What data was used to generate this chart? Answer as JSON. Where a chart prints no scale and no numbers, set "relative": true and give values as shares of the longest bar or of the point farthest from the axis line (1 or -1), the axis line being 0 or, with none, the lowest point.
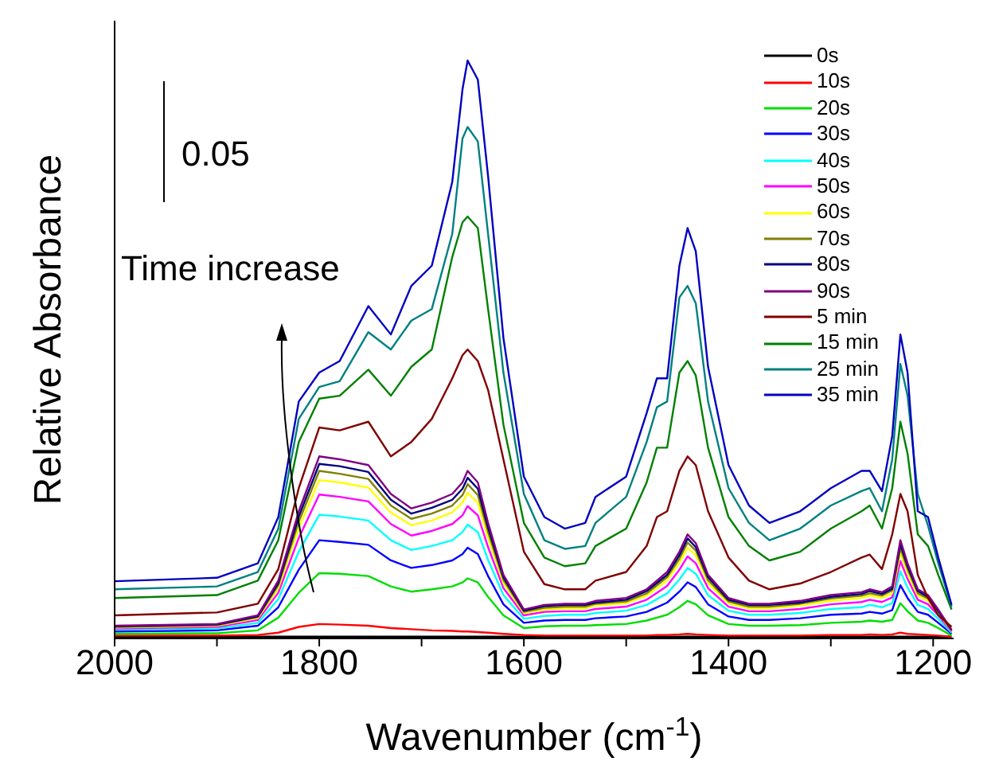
{
  "chart_data": {
    "type": "line",
    "xlabel": "Wavenumber (cm$^{-1}$)",
    "ylabel": "Relative Absorbance",
    "relative": true,
    "xlim": [
      2000,
      1180
    ],
    "xticks": [
      2000,
      {
        "value": 1900,
        "label": null
      },
      1800,
      {
        "value": 1700,
        "label": null
      },
      1600,
      {
        "value": 1500,
        "label": null
      },
      1400,
      {
        "value": 1300,
        "label": null
      },
      1200
    ],
    "legend": "top right",
    "line_style": "solid",
    "annotations": [
      "0.05",
      "Time increase"
    ],
    "x": [
      2000,
      1900,
      1860,
      1840,
      1820,
      1800,
      1780,
      1752,
      1730,
      1710,
      1690,
      1670,
      1660,
      1655,
      1645,
      1635,
      1620,
      1600,
      1580,
      1560,
      1540,
      1530,
      1500,
      1480,
      1470,
      1460,
      1448,
      1440,
      1432,
      1420,
      1400,
      1380,
      1360,
      1330,
      1300,
      1270,
      1262,
      1250,
      1240,
      1232,
      1225,
      1215,
      1205,
      1195,
      1182
    ],
    "series": [
      {
        "name": "0s",
        "color": "#000000",
        "values": [
          0.003,
          0.003,
          0.003,
          0.003,
          0.003,
          0.003,
          0.003,
          0.003,
          0.003,
          0.003,
          0.003,
          0.003,
          0.003,
          0.003,
          0.003,
          0.003,
          0.003,
          0.003,
          0.003,
          0.003,
          0.003,
          0.003,
          0.003,
          0.003,
          0.003,
          0.003,
          0.003,
          0.003,
          0.003,
          0.003,
          0.003,
          0.003,
          0.003,
          0.003,
          0.003,
          0.003,
          0.003,
          0.003,
          0.003,
          0.003,
          0.003,
          0.003,
          0.003,
          0.003,
          0.003
        ]
      },
      {
        "name": "10s",
        "color": "#ff0000",
        "values": [
          0.005,
          0.005,
          0.006,
          0.01,
          0.02,
          0.025,
          0.024,
          0.022,
          0.018,
          0.016,
          0.014,
          0.013,
          0.012,
          0.012,
          0.011,
          0.01,
          0.008,
          0.006,
          0.005,
          0.005,
          0.005,
          0.005,
          0.005,
          0.005,
          0.006,
          0.006,
          0.007,
          0.008,
          0.007,
          0.006,
          0.005,
          0.005,
          0.005,
          0.005,
          0.006,
          0.006,
          0.007,
          0.006,
          0.007,
          0.01,
          0.008,
          0.007,
          0.006,
          0.005,
          0.003
        ]
      },
      {
        "name": "20s",
        "color": "#00dd00",
        "values": [
          0.008,
          0.009,
          0.014,
          0.036,
          0.079,
          0.113,
          0.112,
          0.108,
          0.09,
          0.081,
          0.085,
          0.09,
          0.097,
          0.104,
          0.097,
          0.072,
          0.04,
          0.018,
          0.021,
          0.022,
          0.022,
          0.023,
          0.025,
          0.031,
          0.036,
          0.041,
          0.054,
          0.065,
          0.059,
          0.04,
          0.025,
          0.022,
          0.022,
          0.023,
          0.027,
          0.029,
          0.031,
          0.029,
          0.032,
          0.061,
          0.047,
          0.031,
          0.027,
          0.018,
          0.005
        ]
      },
      {
        "name": "30s",
        "color": "#0000ff",
        "values": [
          0.012,
          0.014,
          0.022,
          0.054,
          0.119,
          0.17,
          0.167,
          0.162,
          0.135,
          0.122,
          0.127,
          0.135,
          0.146,
          0.157,
          0.146,
          0.108,
          0.059,
          0.027,
          0.031,
          0.032,
          0.032,
          0.035,
          0.038,
          0.046,
          0.054,
          0.062,
          0.081,
          0.097,
          0.089,
          0.059,
          0.038,
          0.032,
          0.032,
          0.035,
          0.041,
          0.043,
          0.046,
          0.043,
          0.049,
          0.092,
          0.07,
          0.046,
          0.041,
          0.027,
          0.008
        ]
      },
      {
        "name": "40s",
        "color": "#00ffff",
        "values": [
          0.015,
          0.017,
          0.027,
          0.068,
          0.15,
          0.214,
          0.211,
          0.204,
          0.17,
          0.153,
          0.16,
          0.17,
          0.184,
          0.197,
          0.184,
          0.136,
          0.075,
          0.034,
          0.039,
          0.041,
          0.041,
          0.044,
          0.048,
          0.058,
          0.068,
          0.078,
          0.102,
          0.122,
          0.112,
          0.075,
          0.048,
          0.041,
          0.041,
          0.044,
          0.051,
          0.054,
          0.058,
          0.054,
          0.061,
          0.116,
          0.088,
          0.058,
          0.051,
          0.034,
          0.01
        ]
      },
      {
        "name": "50s",
        "color": "#ff00ff",
        "values": [
          0.017,
          0.02,
          0.032,
          0.079,
          0.174,
          0.249,
          0.245,
          0.237,
          0.198,
          0.178,
          0.186,
          0.198,
          0.213,
          0.229,
          0.213,
          0.158,
          0.087,
          0.04,
          0.046,
          0.047,
          0.047,
          0.051,
          0.055,
          0.067,
          0.079,
          0.091,
          0.119,
          0.142,
          0.13,
          0.087,
          0.055,
          0.047,
          0.047,
          0.051,
          0.059,
          0.063,
          0.067,
          0.063,
          0.071,
          0.134,
          0.103,
          0.067,
          0.059,
          0.04,
          0.012
        ]
      },
      {
        "name": "60s",
        "color": "#ffff00",
        "values": [
          0.019,
          0.022,
          0.035,
          0.087,
          0.191,
          0.274,
          0.27,
          0.261,
          0.218,
          0.196,
          0.204,
          0.218,
          0.235,
          0.252,
          0.235,
          0.174,
          0.096,
          0.044,
          0.05,
          0.052,
          0.052,
          0.057,
          0.061,
          0.074,
          0.087,
          0.1,
          0.131,
          0.157,
          0.144,
          0.096,
          0.061,
          0.052,
          0.052,
          0.057,
          0.065,
          0.07,
          0.074,
          0.07,
          0.078,
          0.148,
          0.113,
          0.074,
          0.065,
          0.044,
          0.013
        ]
      },
      {
        "name": "70s",
        "color": "#808000",
        "values": [
          0.02,
          0.023,
          0.037,
          0.092,
          0.202,
          0.29,
          0.285,
          0.276,
          0.23,
          0.207,
          0.216,
          0.23,
          0.248,
          0.267,
          0.248,
          0.184,
          0.101,
          0.046,
          0.053,
          0.055,
          0.055,
          0.06,
          0.064,
          0.078,
          0.092,
          0.106,
          0.138,
          0.166,
          0.152,
          0.101,
          0.064,
          0.055,
          0.055,
          0.06,
          0.069,
          0.074,
          0.078,
          0.074,
          0.083,
          0.156,
          0.12,
          0.078,
          0.069,
          0.046,
          0.014
        ]
      },
      {
        "name": "80s",
        "color": "#000080",
        "values": [
          0.021,
          0.024,
          0.038,
          0.096,
          0.211,
          0.302,
          0.298,
          0.288,
          0.24,
          0.216,
          0.226,
          0.24,
          0.259,
          0.278,
          0.259,
          0.192,
          0.106,
          0.048,
          0.056,
          0.058,
          0.058,
          0.062,
          0.067,
          0.082,
          0.096,
          0.11,
          0.144,
          0.173,
          0.158,
          0.106,
          0.067,
          0.058,
          0.058,
          0.062,
          0.072,
          0.077,
          0.082,
          0.077,
          0.086,
          0.163,
          0.125,
          0.082,
          0.072,
          0.048,
          0.014
        ]
      },
      {
        "name": "90s",
        "color": "#800080",
        "values": [
          0.022,
          0.025,
          0.04,
          0.1,
          0.22,
          0.315,
          0.31,
          0.3,
          0.25,
          0.225,
          0.235,
          0.25,
          0.27,
          0.29,
          0.27,
          0.2,
          0.11,
          0.05,
          0.058,
          0.06,
          0.06,
          0.065,
          0.07,
          0.085,
          0.1,
          0.115,
          0.15,
          0.18,
          0.165,
          0.11,
          0.07,
          0.06,
          0.06,
          0.065,
          0.075,
          0.08,
          0.085,
          0.08,
          0.09,
          0.17,
          0.13,
          0.085,
          0.075,
          0.05,
          0.015
        ]
      },
      {
        "name": "5 min",
        "color": "#800000",
        "values": [
          0.04,
          0.045,
          0.06,
          0.12,
          0.26,
          0.365,
          0.36,
          0.375,
          0.315,
          0.34,
          0.38,
          0.45,
          0.49,
          0.5,
          0.48,
          0.43,
          0.31,
          0.15,
          0.094,
          0.085,
          0.085,
          0.1,
          0.115,
          0.16,
          0.21,
          0.22,
          0.29,
          0.315,
          0.3,
          0.22,
          0.14,
          0.1,
          0.085,
          0.095,
          0.115,
          0.14,
          0.145,
          0.12,
          0.18,
          0.25,
          0.22,
          0.11,
          0.07,
          0.04,
          0.02
        ]
      },
      {
        "name": "15 min",
        "color": "#008000",
        "values": [
          0.07,
          0.075,
          0.1,
          0.17,
          0.34,
          0.415,
          0.42,
          0.465,
          0.42,
          0.47,
          0.5,
          0.66,
          0.72,
          0.73,
          0.71,
          0.57,
          0.37,
          0.2,
          0.14,
          0.125,
          0.13,
          0.16,
          0.19,
          0.27,
          0.33,
          0.33,
          0.46,
          0.48,
          0.455,
          0.33,
          0.21,
          0.16,
          0.135,
          0.15,
          0.19,
          0.22,
          0.23,
          0.19,
          0.26,
          0.375,
          0.32,
          0.18,
          0.16,
          0.11,
          0.05
        ]
      },
      {
        "name": "25 min",
        "color": "#008080",
        "values": [
          0.085,
          0.09,
          0.115,
          0.19,
          0.38,
          0.435,
          0.445,
          0.53,
          0.5,
          0.55,
          0.57,
          0.7,
          0.865,
          0.885,
          0.86,
          0.7,
          0.46,
          0.25,
          0.17,
          0.155,
          0.16,
          0.2,
          0.245,
          0.34,
          0.4,
          0.41,
          0.59,
          0.61,
          0.58,
          0.41,
          0.26,
          0.2,
          0.17,
          0.19,
          0.23,
          0.255,
          0.26,
          0.22,
          0.31,
          0.475,
          0.42,
          0.25,
          0.195,
          0.13,
          0.055
        ]
      },
      {
        "name": "35 min",
        "color": "#0000c0",
        "values": [
          0.099,
          0.105,
          0.13,
          0.21,
          0.41,
          0.46,
          0.48,
          0.575,
          0.526,
          0.61,
          0.645,
          0.79,
          0.95,
          1,
          0.967,
          0.8,
          0.52,
          0.28,
          0.21,
          0.19,
          0.2,
          0.245,
          0.28,
          0.39,
          0.45,
          0.45,
          0.645,
          0.71,
          0.67,
          0.47,
          0.3,
          0.23,
          0.2,
          0.22,
          0.26,
          0.29,
          0.29,
          0.255,
          0.35,
          0.526,
          0.46,
          0.22,
          0.21,
          0.14,
          0.058
        ]
      }
    ]
  }
}
